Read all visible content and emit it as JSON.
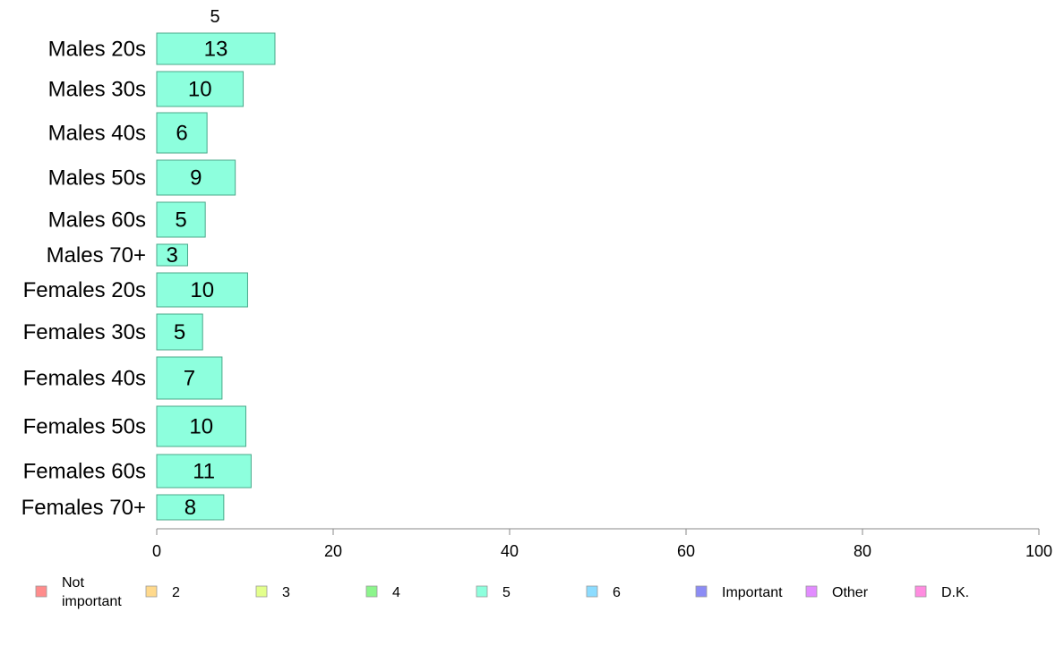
{
  "chart_data": {
    "type": "bar",
    "orientation": "horizontal",
    "column_title": "5",
    "categories": [
      "Males 20s",
      "Males 30s",
      "Males 40s",
      "Males 50s",
      "Males 60s",
      "Males 70+",
      "Females 20s",
      "Females 30s",
      "Females 40s",
      "Females 50s",
      "Females 60s",
      "Females 70+"
    ],
    "series": [
      {
        "name": "5",
        "color": "#8dffdd",
        "values": [
          13.4,
          9.8,
          5.7,
          8.9,
          5.5,
          3.5,
          10.3,
          5.2,
          7.4,
          10.1,
          10.7,
          7.6
        ],
        "labels": [
          "13",
          "10",
          "6",
          "9",
          "5",
          "3",
          "10",
          "5",
          "7",
          "10",
          "11",
          "8"
        ]
      }
    ],
    "xlim": [
      0,
      100
    ],
    "xticks": [
      "0",
      "20",
      "40",
      "60",
      "80",
      "100"
    ],
    "xlabel": "",
    "ylabel": "",
    "grid": false,
    "legend_position": "bottom",
    "legend": [
      {
        "label": "Not important",
        "color": "#ff8c8c"
      },
      {
        "label": "2",
        "color": "#ffd98c"
      },
      {
        "label": "3",
        "color": "#e3ff8c"
      },
      {
        "label": "4",
        "color": "#8cf58c"
      },
      {
        "label": "5",
        "color": "#8dffdd"
      },
      {
        "label": "6",
        "color": "#8cdcff"
      },
      {
        "label": "Important",
        "color": "#8c8cf5"
      },
      {
        "label": "Other",
        "color": "#e28cff"
      },
      {
        "label": "D.K.",
        "color": "#ff8ce0"
      }
    ],
    "bar_edge_color": "#4aa88a",
    "axis_color": "#888888"
  }
}
